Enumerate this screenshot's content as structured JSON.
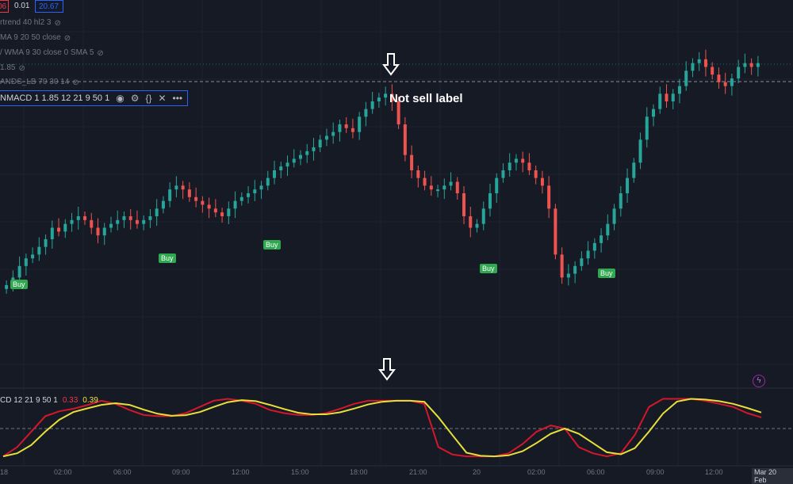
{
  "top_values": [
    {
      "text": "06",
      "color": "#f23645"
    },
    {
      "text": "0.01",
      "color": "#d1d4dc"
    },
    {
      "text": "20.67",
      "color": "#2962ff"
    }
  ],
  "legends": [
    "rtrend 40 hl2 3",
    "MA 9 20 50 close",
    "/ WMA 9 30 close 0 SMA 5",
    "1.85",
    "ANDS_LB 70 30 14"
  ],
  "indicator_row": {
    "label": "NMACD 1 1.85 12 21 9 50 1",
    "icons": [
      "eye-icon",
      "gear-icon",
      "code-braces-icon",
      "close-icon",
      "more-icon"
    ]
  },
  "annotation": "Not sell label",
  "buy_label": "Buy",
  "lower_legend": {
    "name": "CD 12 21 9 50 1",
    "value1": "0.33",
    "value1_color": "#f23645",
    "value2": "0.39",
    "value2_color": "#f0e442"
  },
  "x_labels": [
    "18",
    "02:00",
    "06:00",
    "09:00",
    "12:00",
    "15:00",
    "18:00",
    "21:00",
    "20",
    "02:00",
    "06:00",
    "09:00",
    "12:00",
    "Mar 20 Feb"
  ],
  "colors": {
    "up": "#26a69a",
    "down": "#ef5350",
    "red_line": "#d4172b",
    "yellow_line": "#e8df3b",
    "background": "#161a25"
  },
  "chart_data": {
    "type": "candlestick",
    "candles_close_trend": [
      40,
      42,
      45,
      47,
      48,
      50,
      52,
      55,
      54,
      56,
      57,
      58,
      57,
      55,
      53,
      55,
      56,
      57,
      58,
      57,
      56,
      57,
      58,
      60,
      62,
      65,
      66,
      65,
      63,
      62,
      61,
      60,
      59,
      58,
      60,
      62,
      63,
      64,
      65,
      66,
      68,
      70,
      71,
      72,
      73,
      74,
      75,
      76,
      78,
      79,
      80,
      82,
      81,
      80,
      84,
      86,
      88,
      89,
      90,
      88,
      82,
      74,
      70,
      68,
      66,
      65,
      65,
      66,
      67,
      64,
      58,
      55,
      56,
      60,
      64,
      68,
      70,
      72,
      73,
      72,
      70,
      68,
      66,
      60,
      48,
      42,
      43,
      45,
      47,
      49,
      51,
      53,
      56,
      60,
      64,
      68,
      72,
      78,
      84,
      86,
      90,
      88,
      90,
      92,
      96,
      98,
      99,
      97,
      95,
      93,
      92,
      94,
      97,
      98,
      97,
      98
    ]
  }
}
